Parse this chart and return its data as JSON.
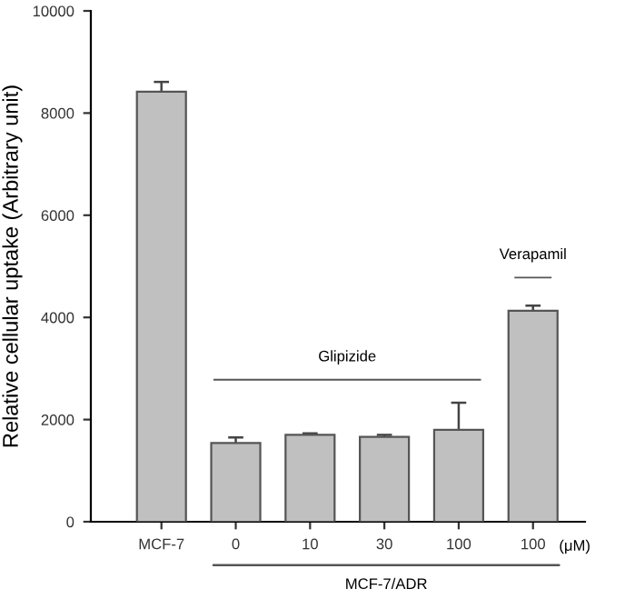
{
  "chart_data": {
    "type": "bar",
    "ylabel": "Relative cellular uptake (Arbitrary unit)",
    "categories": [
      "MCF-7",
      "0",
      "10",
      "30",
      "100",
      "100"
    ],
    "values": [
      8420,
      1540,
      1700,
      1660,
      1800,
      4130
    ],
    "errors": [
      190,
      110,
      30,
      40,
      530,
      100
    ],
    "color": "#c0c0c0",
    "ylim": [
      0,
      10000
    ],
    "yticks": [
      0,
      2000,
      4000,
      6000,
      8000,
      10000
    ],
    "grid": false,
    "annotations": [
      "Glipizide",
      "Verapamil",
      "(μM)",
      "MCF-7/ADR"
    ]
  }
}
